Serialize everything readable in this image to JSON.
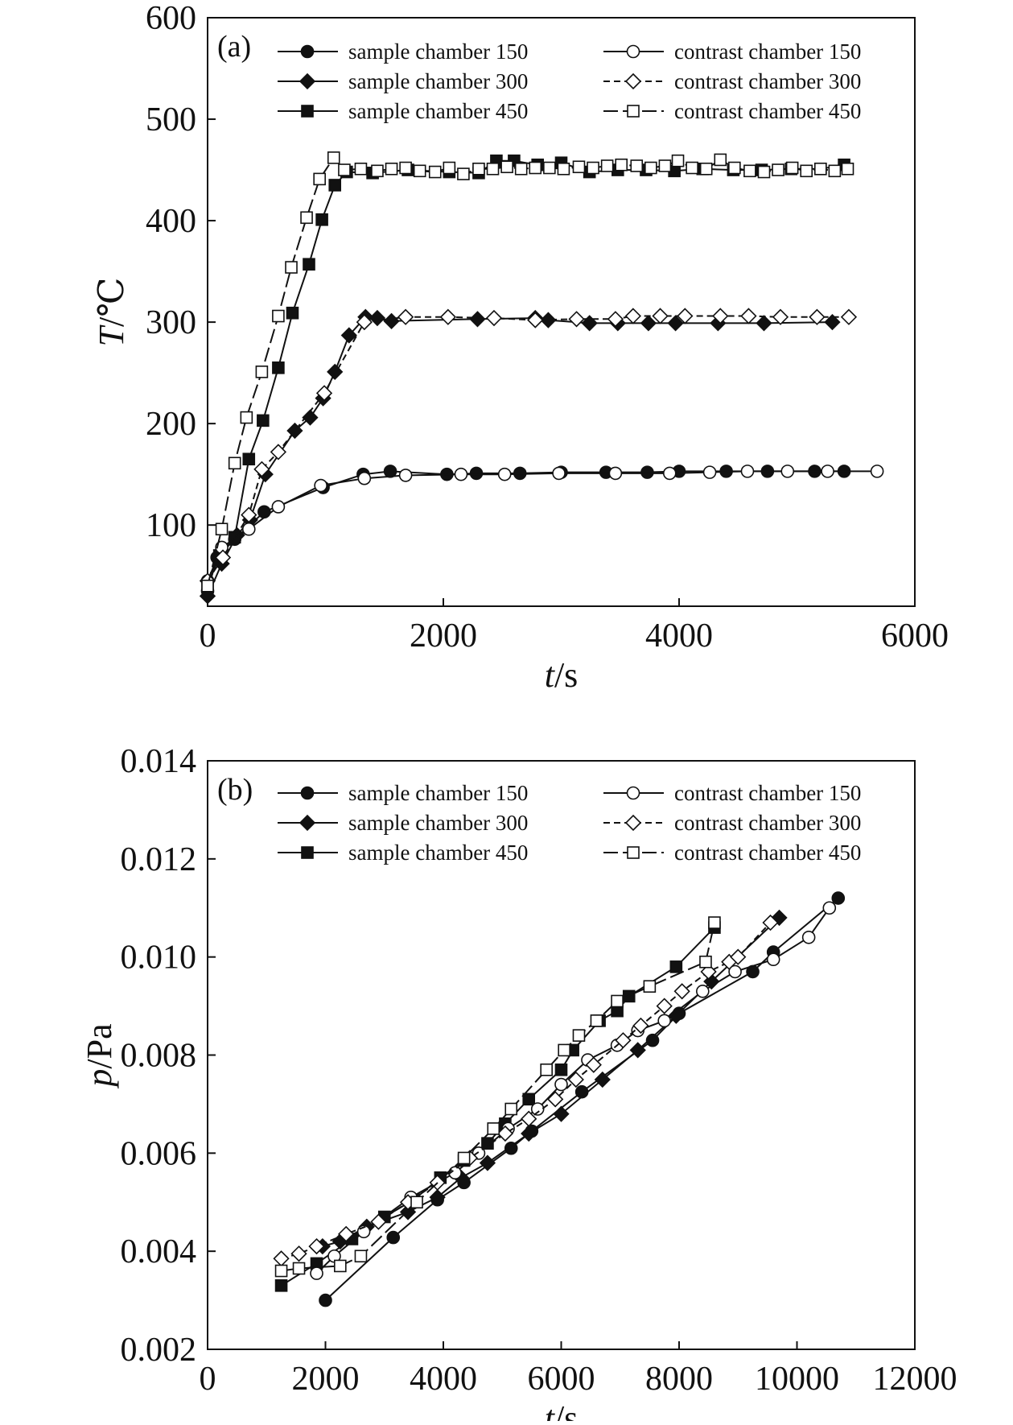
{
  "chart_data": [
    {
      "type": "line",
      "panel": "(a)",
      "xlabel_italic": "t",
      "xlabel_unit": "/s",
      "ylabel_italic": "T",
      "ylabel_unit": "/℃",
      "xlim": [
        0,
        6000
      ],
      "ylim": [
        20,
        600
      ],
      "xticks": [
        0,
        2000,
        4000,
        6000
      ],
      "yticks": [
        100,
        200,
        300,
        400,
        500,
        600
      ],
      "xtick_labels": [
        "0",
        "2000",
        "4000",
        "6000"
      ],
      "ytick_labels": [
        "100",
        "200",
        "300",
        "400",
        "500",
        "600"
      ],
      "grid": false,
      "legend_position": "top",
      "series": [
        {
          "name": "sample chamber 150",
          "marker": "circle",
          "filled": true,
          "dash": "",
          "x": [
            0,
            80,
            230,
            480,
            980,
            1320,
            1550,
            2030,
            2280,
            2650,
            3000,
            3380,
            3730,
            4000,
            4400,
            4750,
            5150,
            5400
          ],
          "y": [
            35,
            68,
            86,
            113,
            137,
            150,
            153,
            150,
            151,
            151,
            152,
            152,
            152,
            153,
            153,
            153,
            153,
            153
          ]
        },
        {
          "name": "sample chamber 300",
          "marker": "diamond",
          "filled": true,
          "dash": "",
          "x": [
            0,
            120,
            250,
            360,
            490,
            740,
            870,
            980,
            1080,
            1200,
            1340,
            1440,
            1560,
            2290,
            2780,
            2890,
            3240,
            3480,
            3740,
            3970,
            4330,
            4720,
            5300
          ],
          "y": [
            30,
            62,
            90,
            105,
            150,
            193,
            206,
            225,
            251,
            287,
            305,
            304,
            301,
            303,
            304,
            302,
            299,
            299,
            299,
            299,
            299,
            299,
            300
          ]
        },
        {
          "name": "sample chamber 450",
          "marker": "square",
          "filled": true,
          "dash": "",
          "x": [
            0,
            100,
            230,
            350,
            470,
            600,
            720,
            860,
            970,
            1080,
            1180,
            1400,
            1700,
            2050,
            2300,
            2450,
            2600,
            2800,
            3000,
            3240,
            3480,
            3720,
            3960,
            4200,
            4460,
            4700,
            4950,
            5200,
            5400
          ],
          "y": [
            40,
            70,
            88,
            165,
            203,
            255,
            309,
            357,
            401,
            435,
            448,
            447,
            450,
            448,
            447,
            459,
            459,
            455,
            457,
            448,
            450,
            450,
            449,
            451,
            450,
            450,
            451,
            451,
            455
          ]
        },
        {
          "name": "contrast chamber 150",
          "marker": "circle",
          "filled": false,
          "dash": "",
          "x": [
            0,
            120,
            350,
            600,
            960,
            1330,
            1680,
            2150,
            2520,
            2980,
            3460,
            3920,
            4260,
            4580,
            4920,
            5260,
            5680
          ],
          "y": [
            45,
            78,
            96,
            118,
            139,
            146,
            149,
            150,
            150,
            151,
            151,
            151,
            152,
            153,
            153,
            153,
            153
          ]
        },
        {
          "name": "contrast chamber 300",
          "marker": "diamond",
          "filled": false,
          "dash": "8,5",
          "x": [
            0,
            130,
            350,
            460,
            600,
            990,
            1330,
            1680,
            2040,
            2430,
            2780,
            3130,
            3460,
            3610,
            3840,
            4050,
            4350,
            4590,
            4860,
            5170,
            5440
          ],
          "y": [
            45,
            68,
            110,
            155,
            172,
            230,
            300,
            305,
            305,
            304,
            302,
            303,
            303,
            306,
            306,
            306,
            306,
            306,
            305,
            305,
            305
          ]
        },
        {
          "name": "contrast chamber 450",
          "marker": "square",
          "filled": false,
          "dash": "18,6",
          "x": [
            0,
            120,
            230,
            330,
            460,
            600,
            710,
            840,
            950,
            1070,
            1160,
            1300,
            1440,
            1560,
            1680,
            1800,
            1930,
            2050,
            2170,
            2300,
            2420,
            2540,
            2660,
            2780,
            2900,
            3020,
            3150,
            3270,
            3390,
            3510,
            3640,
            3760,
            3880,
            3990,
            4110,
            4230,
            4350,
            4470,
            4600,
            4720,
            4840,
            4960,
            5080,
            5200,
            5320,
            5430
          ],
          "y": [
            40,
            96,
            161,
            206,
            251,
            306,
            354,
            403,
            441,
            462,
            450,
            451,
            449,
            451,
            452,
            449,
            448,
            452,
            446,
            451,
            451,
            453,
            451,
            452,
            452,
            451,
            453,
            452,
            454,
            455,
            454,
            452,
            454,
            459,
            452,
            451,
            460,
            452,
            449,
            448,
            450,
            452,
            449,
            451,
            449,
            451
          ]
        }
      ]
    },
    {
      "type": "line",
      "panel": "(b)",
      "xlabel_italic": "t",
      "xlabel_unit": "/s",
      "ylabel_italic": "p",
      "ylabel_unit": "/Pa",
      "xlim": [
        0,
        12000
      ],
      "ylim": [
        0.002,
        0.014
      ],
      "xticks": [
        0,
        2000,
        4000,
        6000,
        8000,
        10000,
        12000
      ],
      "yticks": [
        0.002,
        0.004,
        0.006,
        0.008,
        0.01,
        0.012,
        0.014
      ],
      "xtick_labels": [
        "0",
        "2000",
        "4000",
        "6000",
        "8000",
        "10000",
        "12000"
      ],
      "ytick_labels": [
        "0.002",
        "0.004",
        "0.006",
        "0.008",
        "0.010",
        "0.012",
        "0.014"
      ],
      "grid": false,
      "legend_position": "top",
      "series": [
        {
          "name": "sample chamber 150",
          "marker": "circle",
          "filled": true,
          "dash": "",
          "x": [
            2000,
            3150,
            3900,
            4350,
            5150,
            5500,
            6350,
            7550,
            8000,
            9250,
            9600,
            10700
          ],
          "y": [
            0.003,
            0.00428,
            0.00505,
            0.0054,
            0.0061,
            0.00645,
            0.00725,
            0.0083,
            0.00885,
            0.0097,
            0.0101,
            0.0112
          ]
        },
        {
          "name": "sample chamber 300",
          "marker": "diamond",
          "filled": true,
          "dash": "",
          "x": [
            1950,
            2250,
            2700,
            3400,
            3900,
            4300,
            4750,
            5450,
            6000,
            6700,
            7300,
            7950,
            8550,
            9700
          ],
          "y": [
            0.0041,
            0.0042,
            0.0045,
            0.0048,
            0.0051,
            0.0055,
            0.0058,
            0.0064,
            0.0068,
            0.0075,
            0.0081,
            0.0088,
            0.0095,
            0.0108
          ]
        },
        {
          "name": "sample chamber 450",
          "marker": "square",
          "filled": true,
          "dash": "",
          "x": [
            1250,
            1850,
            2450,
            3000,
            3500,
            3950,
            4350,
            4750,
            5050,
            5450,
            6000,
            6200,
            6650,
            6950,
            7150,
            7950,
            8600
          ],
          "y": [
            0.0033,
            0.00375,
            0.00425,
            0.0047,
            0.00505,
            0.0055,
            0.00585,
            0.0062,
            0.0066,
            0.0071,
            0.0077,
            0.0081,
            0.0087,
            0.0089,
            0.0092,
            0.0098,
            0.0106
          ]
        },
        {
          "name": "contrast chamber 150",
          "marker": "circle",
          "filled": false,
          "dash": "",
          "x": [
            1850,
            2150,
            2650,
            3450,
            4200,
            4600,
            5100,
            5600,
            6000,
            6450,
            6950,
            7300,
            7750,
            8400,
            8950,
            9600,
            10200,
            10550
          ],
          "y": [
            0.00355,
            0.0039,
            0.0044,
            0.0051,
            0.0056,
            0.006,
            0.0065,
            0.0069,
            0.0074,
            0.0079,
            0.0082,
            0.0085,
            0.0087,
            0.0093,
            0.0097,
            0.00995,
            0.0104,
            0.011
          ]
        },
        {
          "name": "contrast chamber 300",
          "marker": "diamond",
          "filled": false,
          "dash": "8,5",
          "x": [
            1250,
            1550,
            1850,
            2350,
            2900,
            3400,
            3900,
            4450,
            5050,
            5450,
            5900,
            6250,
            6550,
            7050,
            7350,
            7750,
            8050,
            8500,
            8850,
            9000,
            9550
          ],
          "y": [
            0.00385,
            0.00395,
            0.0041,
            0.00435,
            0.0046,
            0.005,
            0.0054,
            0.0059,
            0.0064,
            0.0067,
            0.0071,
            0.0075,
            0.0078,
            0.0083,
            0.0086,
            0.009,
            0.0093,
            0.0097,
            0.0099,
            0.01,
            0.0107
          ]
        },
        {
          "name": "contrast chamber 450",
          "marker": "square",
          "filled": false,
          "dash": "18,6",
          "x": [
            1250,
            1550,
            2250,
            2600,
            3550,
            4350,
            4850,
            5150,
            5750,
            6050,
            6300,
            6600,
            6950,
            7500,
            8450,
            8600
          ],
          "y": [
            0.0036,
            0.00365,
            0.0037,
            0.0039,
            0.005,
            0.0059,
            0.0065,
            0.0069,
            0.0077,
            0.0081,
            0.0084,
            0.0087,
            0.0091,
            0.0094,
            0.0099,
            0.0107
          ]
        }
      ]
    }
  ]
}
